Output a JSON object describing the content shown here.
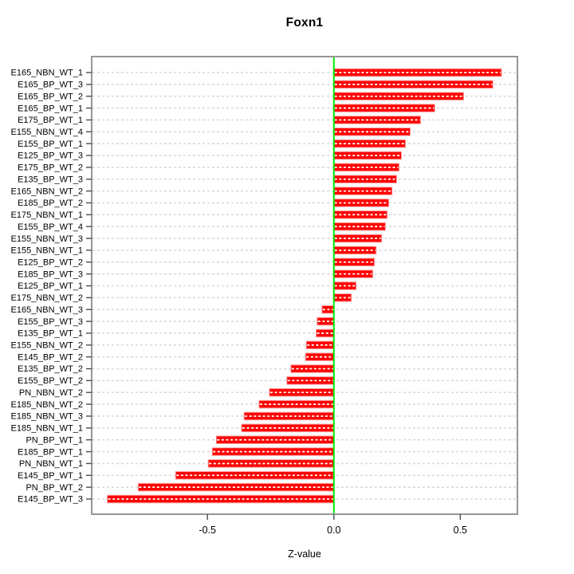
{
  "window": {
    "background": "#ffffff"
  },
  "chart_data": {
    "type": "bar",
    "orientation": "horizontal",
    "title": "Foxn1",
    "xlabel": "Z-value",
    "ylabel": "",
    "legend": null,
    "grid": true,
    "zero_line": true,
    "categories": [
      "E165_NBN_WT_1",
      "E165_BP_WT_3",
      "E165_BP_WT_2",
      "E165_BP_WT_1",
      "E175_BP_WT_1",
      "E155_NBN_WT_4",
      "E155_BP_WT_1",
      "E125_BP_WT_3",
      "E175_BP_WT_2",
      "E135_BP_WT_3",
      "E165_NBN_WT_2",
      "E185_BP_WT_2",
      "E175_NBN_WT_1",
      "E155_BP_WT_4",
      "E155_NBN_WT_3",
      "E155_NBN_WT_1",
      "E125_BP_WT_2",
      "E185_BP_WT_3",
      "E125_BP_WT_1",
      "E175_NBN_WT_2",
      "E165_NBN_WT_3",
      "E155_BP_WT_3",
      "E135_BP_WT_1",
      "E155_NBN_WT_2",
      "E145_BP_WT_2",
      "E135_BP_WT_2",
      "E155_BP_WT_2",
      "PN_NBN_WT_2",
      "E185_NBN_WT_2",
      "E185_NBN_WT_3",
      "E185_NBN_WT_1",
      "PN_BP_WT_1",
      "E185_BP_WT_1",
      "PN_NBN_WT_1",
      "E145_BP_WT_1",
      "PN_BP_WT_2",
      "E145_BP_WT_3"
    ],
    "values": [
      0.663,
      0.629,
      0.513,
      0.399,
      0.343,
      0.302,
      0.283,
      0.267,
      0.258,
      0.248,
      0.23,
      0.217,
      0.211,
      0.204,
      0.189,
      0.167,
      0.16,
      0.154,
      0.088,
      0.069,
      -0.047,
      -0.066,
      -0.07,
      -0.109,
      -0.112,
      -0.17,
      -0.186,
      -0.255,
      -0.296,
      -0.355,
      -0.365,
      -0.465,
      -0.481,
      -0.497,
      -0.626,
      -0.774,
      -0.896
    ],
    "x_ticks": [
      -0.5,
      0.0,
      0.5
    ],
    "x_tick_labels": [
      "-0.5",
      "0.0",
      "0.5"
    ],
    "xlim": [
      -0.958,
      0.726
    ],
    "colors": {
      "bar_fill": "#ff0000",
      "bar_border": "#ff9999",
      "bar_center_dash": "#ffffff",
      "zero_line": "#00ee00",
      "grid_line": "#d9d9d9",
      "box_border": "#8a8a8a",
      "tick": "#4d4d4d",
      "text": "#000000"
    }
  }
}
